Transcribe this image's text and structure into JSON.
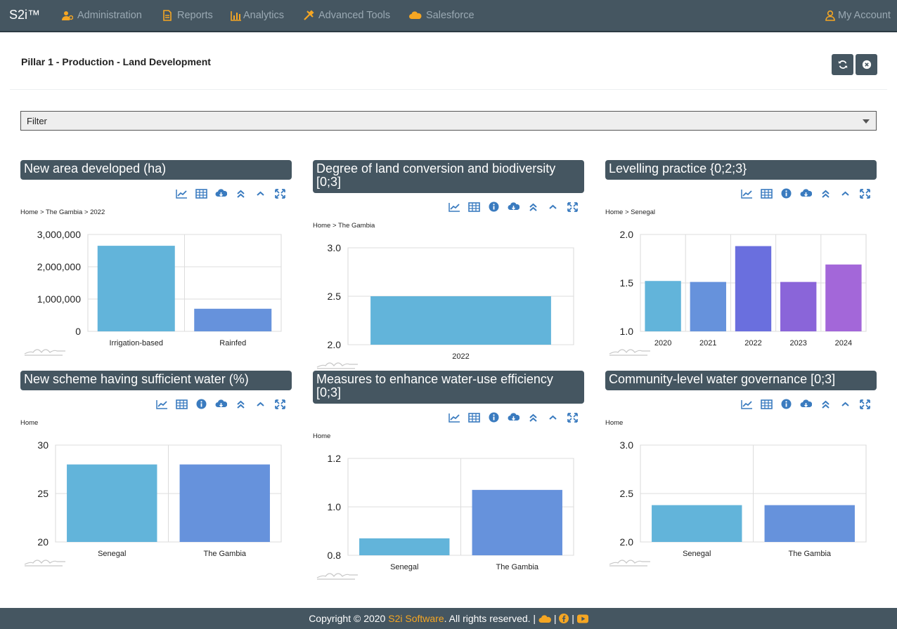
{
  "navbar": {
    "brand": "S2i™",
    "items": [
      {
        "label": "Administration",
        "icon": "user-gear-icon"
      },
      {
        "label": "Reports",
        "icon": "file-icon"
      },
      {
        "label": "Analytics",
        "icon": "bar-chart-icon"
      },
      {
        "label": "Advanced Tools",
        "icon": "tools-icon"
      },
      {
        "label": "Salesforce",
        "icon": "cloud-icon"
      }
    ],
    "account": "My Account",
    "icon_color": "#f5a623",
    "text_color": "#9aa9b3",
    "bg": "#455661"
  },
  "page": {
    "title": "Pillar 1 - Production - Land Development",
    "refresh_icon": "refresh-icon",
    "close_icon": "close-circle-icon"
  },
  "filter": {
    "label": "Filter"
  },
  "footer": {
    "prefix": "Copyright © 2020 ",
    "company": "S2i Software",
    "suffix": ". All rights reserved. |",
    "sep1": "|",
    "sep2": "|"
  },
  "panels": [
    {
      "title": "New area developed (ha)",
      "breadcrumb": "Home > The Gambia > 2022"
    },
    {
      "title": "Degree of land conversion and biodiversity [0;3]",
      "breadcrumb": "Home > The Gambia"
    },
    {
      "title": "Levelling practice {0;2;3}",
      "breadcrumb": "Home > Senegal"
    },
    {
      "title": "New scheme having sufficient water (%)",
      "breadcrumb": "Home"
    },
    {
      "title": "Measures to enhance water-use efficiency [0;3]",
      "breadcrumb": "Home"
    },
    {
      "title": "Community-level water governance [0;3]",
      "breadcrumb": "Home"
    }
  ],
  "chart_data": [
    {
      "type": "bar",
      "categories": [
        "Irrigation-based",
        "Rainfed"
      ],
      "values": [
        2650000,
        700000
      ],
      "ylim": [
        0,
        3000000
      ],
      "yticks": [
        "0",
        "1,000,000",
        "2,000,000",
        "3,000,000"
      ],
      "colors": [
        "#62b4da",
        "#6692dc"
      ]
    },
    {
      "type": "bar",
      "categories": [
        "2022"
      ],
      "values": [
        2.5
      ],
      "ylim": [
        2.0,
        3.0
      ],
      "yticks": [
        "2.0",
        "2.5",
        "3.0"
      ],
      "colors": [
        "#62b4da"
      ]
    },
    {
      "type": "bar",
      "categories": [
        "2020",
        "2021",
        "2022",
        "2023",
        "2024"
      ],
      "values": [
        1.52,
        1.51,
        1.88,
        1.51,
        1.69
      ],
      "ylim": [
        1.0,
        2.0
      ],
      "yticks": [
        "1.0",
        "1.5",
        "2.0"
      ],
      "colors": [
        "#62b4da",
        "#6692dc",
        "#6a6fde",
        "#8a65d9",
        "#a367d9"
      ]
    },
    {
      "type": "bar",
      "categories": [
        "Senegal",
        "The Gambia"
      ],
      "values": [
        28,
        28
      ],
      "ylim": [
        20,
        30
      ],
      "yticks": [
        "20",
        "25",
        "30"
      ],
      "colors": [
        "#62b4da",
        "#6692dc"
      ]
    },
    {
      "type": "bar",
      "categories": [
        "Senegal",
        "The Gambia"
      ],
      "values": [
        0.87,
        1.07
      ],
      "ylim": [
        0.8,
        1.2
      ],
      "yticks": [
        "0.8",
        "1.0",
        "1.2"
      ],
      "colors": [
        "#62b4da",
        "#6692dc"
      ]
    },
    {
      "type": "bar",
      "categories": [
        "Senegal",
        "The Gambia"
      ],
      "values": [
        2.38,
        2.38
      ],
      "ylim": [
        2.0,
        3.0
      ],
      "yticks": [
        "2.0",
        "2.5",
        "3.0"
      ],
      "colors": [
        "#62b4da",
        "#6692dc"
      ]
    }
  ]
}
